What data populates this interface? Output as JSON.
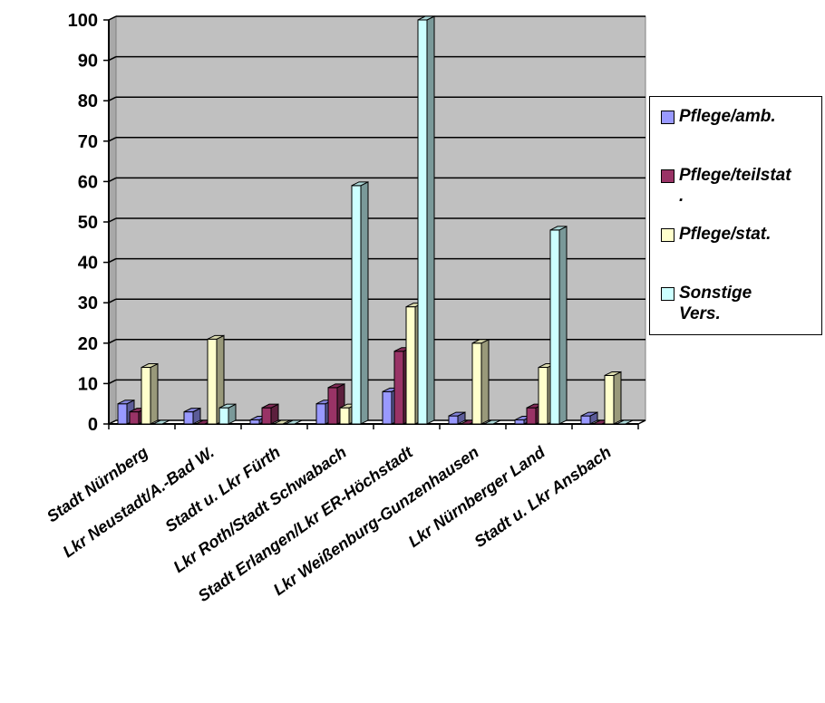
{
  "chart_data": {
    "type": "bar",
    "title": "",
    "xlabel": "",
    "ylabel": "",
    "ylim": [
      0,
      100
    ],
    "yticks": [
      0,
      10,
      20,
      30,
      40,
      50,
      60,
      70,
      80,
      90,
      100
    ],
    "grid": true,
    "legend_position": "right",
    "categories": [
      "Stadt Nürnberg",
      "Lkr Neustadt/A.-Bad W.",
      "Stadt u. Lkr Fürth",
      "Lkr Roth/Stadt Schwabach",
      "Stadt Erlangen/Lkr ER-Höchstadt",
      "Lkr Weißenburg-Gunzenhausen",
      "Lkr Nürnberger Land",
      "Stadt u. Lkr Ansbach"
    ],
    "series": [
      {
        "name": "Pflege/amb.",
        "color": "#9999FF",
        "values": [
          5,
          3,
          1,
          5,
          8,
          2,
          1,
          2
        ]
      },
      {
        "name": "Pflege/teilstat\n.",
        "color": "#993366",
        "values": [
          3,
          0,
          4,
          9,
          18,
          0,
          4,
          0
        ]
      },
      {
        "name": "Pflege/stat.",
        "color": "#FFFFCC",
        "values": [
          14,
          21,
          0,
          4,
          29,
          20,
          14,
          12
        ]
      },
      {
        "name": "Sonstige\nVers.",
        "color": "#CCFFFF",
        "values": [
          0,
          4,
          0,
          59,
          100,
          0,
          48,
          0
        ]
      }
    ],
    "plot_background": "#C0C0C0"
  }
}
